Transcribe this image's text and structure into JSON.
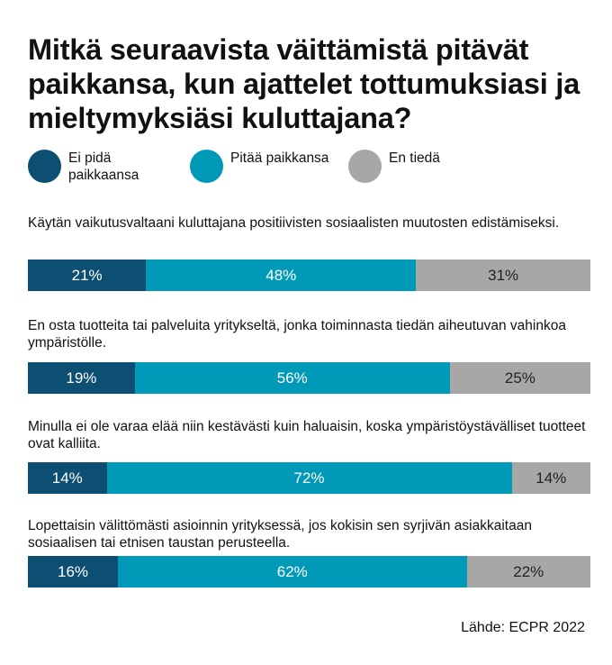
{
  "title": "Mitkä seuraavista väittämistä pitävät paikkansa, kun ajattelet tottumuksiasi ja mieltymyksiäsi kuluttajana?",
  "source": "Lähde: ECPR 2022",
  "colors": {
    "ei_pida": "#0d4f72",
    "pitaa": "#0099b8",
    "en_tieda": "#a9a6a7",
    "label_light": "#ffffff",
    "label_dark": "#222222"
  },
  "chart_data": {
    "type": "bar",
    "orientation": "horizontal-stacked-100",
    "title": "Mitkä seuraavista väittämistä pitävät paikkansa, kun ajattelet tottumuksiasi ja mieltymyksiäsi kuluttajana?",
    "legend": [
      {
        "key": "ei_pida",
        "label": "Ei pidä paikkaansa"
      },
      {
        "key": "pitaa",
        "label": "Pitää paikkansa"
      },
      {
        "key": "en_tieda",
        "label": "En tiedä"
      }
    ],
    "categories": [
      "Käytän vaikutusvaltaani kuluttajana positiivisten sosiaalisten muutosten edistämiseksi.",
      "En osta tuotteita tai palveluita yritykseltä, jonka toiminnasta tiedän aiheutuvan vahinkoa ympäristölle.",
      "Minulla ei ole varaa elää niin kestävästi kuin haluaisin, koska ympäristöystävälliset tuotteet ovat kalliita.",
      "Lopettaisin välittömästi asioinnin yrityksessä, jos kokisin sen syrjivän asiakkaitaan sosiaalisen tai etnisen taustan perusteella."
    ],
    "series": [
      {
        "name": "Ei pidä paikkaansa",
        "key": "ei_pida",
        "values": [
          21,
          19,
          14,
          16
        ],
        "labels": [
          "21%",
          "19%",
          "14%",
          "16%"
        ]
      },
      {
        "name": "Pitää paikkansa",
        "key": "pitaa",
        "values": [
          48,
          56,
          72,
          62
        ],
        "labels": [
          "48%",
          "56%",
          "72%",
          "62%"
        ]
      },
      {
        "name": "En tiedä",
        "key": "en_tieda",
        "values": [
          31,
          25,
          14,
          22
        ],
        "labels": [
          "31%",
          "25%",
          "14%",
          "22%"
        ]
      }
    ],
    "xlim": [
      0,
      100
    ],
    "unit": "%"
  }
}
